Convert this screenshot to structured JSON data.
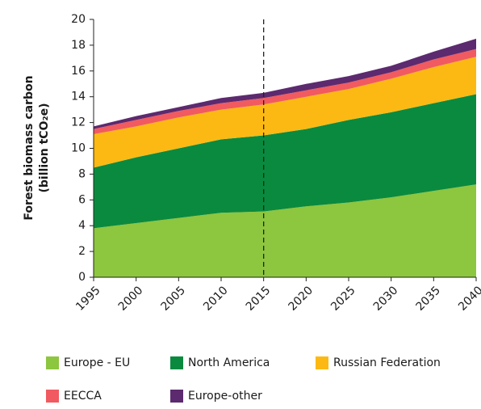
{
  "chart_data": {
    "type": "stacked_area",
    "y_label": [
      "Forest biomass carbon",
      "(billion tCO₂e)"
    ],
    "x": [
      1995,
      2000,
      2005,
      2010,
      2015,
      2020,
      2025,
      2030,
      2035,
      2040
    ],
    "series": [
      {
        "name": "Europe - EU",
        "color": "#8dc63f",
        "values": [
          3.8,
          4.2,
          4.6,
          5.0,
          5.1,
          5.5,
          5.8,
          6.2,
          6.7,
          7.2
        ]
      },
      {
        "name": "North America",
        "color": "#0a8a3f",
        "values": [
          4.7,
          5.1,
          5.4,
          5.7,
          5.9,
          6.0,
          6.4,
          6.6,
          6.8,
          7.0
        ]
      },
      {
        "name": "Russian Federation",
        "color": "#fdb913",
        "values": [
          2.6,
          2.4,
          2.4,
          2.3,
          2.4,
          2.5,
          2.4,
          2.6,
          2.8,
          2.9
        ]
      },
      {
        "name": "EECCA",
        "color": "#f15a60",
        "values": [
          0.4,
          0.5,
          0.5,
          0.5,
          0.5,
          0.5,
          0.5,
          0.5,
          0.6,
          0.6
        ]
      },
      {
        "name": "Europe-other",
        "color": "#5c2a6e",
        "values": [
          0.2,
          0.3,
          0.3,
          0.4,
          0.4,
          0.5,
          0.5,
          0.5,
          0.6,
          0.8
        ]
      }
    ],
    "xlim": [
      1995,
      2040
    ],
    "xticks": [
      1995,
      2000,
      2005,
      2010,
      2015,
      2020,
      2025,
      2030,
      2035,
      2040
    ],
    "ylim": [
      0,
      20
    ],
    "yticks": [
      0,
      2,
      4,
      6,
      8,
      10,
      12,
      14,
      16,
      18,
      20
    ],
    "vline": 2015
  }
}
